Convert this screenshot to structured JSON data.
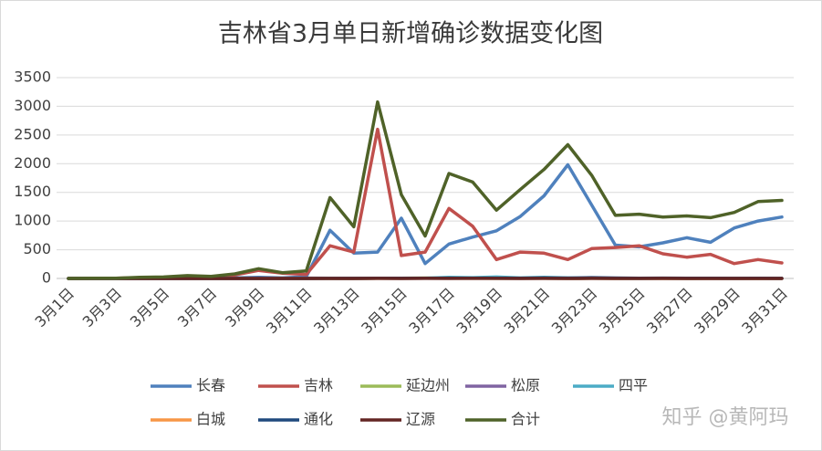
{
  "chart_data": {
    "type": "line",
    "title": "吉林省3月单日新增确诊数据变化图",
    "categories": [
      "3月1日",
      null,
      "3月3日",
      null,
      "3月5日",
      null,
      "3月7日",
      null,
      "3月9日",
      null,
      "3月11日",
      null,
      "3月13日",
      null,
      "3月15日",
      null,
      "3月17日",
      null,
      "3月19日",
      null,
      "3月21日",
      null,
      "3月23日",
      null,
      "3月25日",
      null,
      "3月27日",
      null,
      "3月29日",
      null,
      "3月31日"
    ],
    "series": [
      {
        "name": "长春",
        "color": "#4f81bd",
        "values": [
          0,
          0,
          0,
          2,
          3,
          5,
          4,
          10,
          20,
          10,
          30,
          840,
          440,
          460,
          1050,
          260,
          600,
          720,
          830,
          1080,
          1440,
          1980,
          1280,
          580,
          550,
          620,
          710,
          630,
          880,
          1000,
          1070
        ]
      },
      {
        "name": "吉林",
        "color": "#c0504d",
        "values": [
          0,
          3,
          4,
          15,
          20,
          40,
          30,
          60,
          140,
          90,
          70,
          570,
          460,
          2600,
          400,
          460,
          1220,
          910,
          330,
          460,
          440,
          330,
          520,
          540,
          570,
          430,
          370,
          420,
          260,
          330,
          270
        ]
      },
      {
        "name": "延边州",
        "color": "#9bbb59",
        "values": [
          0,
          0,
          0,
          0,
          0,
          2,
          0,
          3,
          2,
          0,
          5,
          0,
          0,
          5,
          3,
          8,
          4,
          6,
          2,
          3,
          5,
          2,
          3,
          1,
          2,
          1,
          0,
          1,
          2,
          0,
          1
        ]
      },
      {
        "name": "松原",
        "color": "#8064a2",
        "values": [
          0,
          1,
          0,
          2,
          1,
          2,
          1,
          4,
          5,
          2,
          6,
          3,
          2,
          4,
          2,
          3,
          2,
          5,
          3,
          2,
          3,
          2,
          5,
          3,
          2,
          2,
          1,
          2,
          1,
          2,
          1
        ]
      },
      {
        "name": "四平",
        "color": "#4bacc6",
        "values": [
          0,
          0,
          0,
          0,
          0,
          0,
          0,
          0,
          0,
          0,
          0,
          3,
          2,
          4,
          3,
          5,
          20,
          15,
          25,
          10,
          20,
          10,
          5,
          3,
          2,
          3,
          1,
          2,
          1,
          1,
          0
        ]
      },
      {
        "name": "白城",
        "color": "#f79646",
        "values": [
          0,
          0,
          0,
          0,
          0,
          0,
          0,
          0,
          0,
          0,
          0,
          1,
          0,
          2,
          1,
          3,
          2,
          1,
          2,
          1,
          1,
          0,
          1,
          0,
          1,
          0,
          0,
          0,
          0,
          0,
          0
        ]
      },
      {
        "name": "通化",
        "color": "#1f497d",
        "values": [
          0,
          0,
          0,
          0,
          0,
          0,
          0,
          0,
          0,
          0,
          0,
          2,
          2,
          3,
          3,
          5,
          4,
          5,
          3,
          4,
          8,
          6,
          15,
          8,
          5,
          6,
          4,
          3,
          2,
          3,
          2
        ]
      },
      {
        "name": "辽源",
        "color": "#632523",
        "values": [
          0,
          0,
          0,
          0,
          0,
          0,
          0,
          0,
          0,
          0,
          0,
          0,
          0,
          1,
          0,
          2,
          1,
          2,
          1,
          0,
          1,
          0,
          1,
          0,
          0,
          1,
          0,
          0,
          0,
          0,
          0
        ]
      },
      {
        "name": "合计",
        "color": "#4f6228",
        "values": [
          0,
          5,
          5,
          20,
          25,
          50,
          35,
          80,
          170,
          100,
          130,
          1410,
          900,
          3076,
          1460,
          740,
          1830,
          1680,
          1190,
          1550,
          1900,
          2330,
          1800,
          1100,
          1120,
          1070,
          1090,
          1060,
          1150,
          1340,
          1360
        ]
      }
    ],
    "ylim": [
      0,
      3500
    ],
    "yticks": [
      0,
      500,
      1000,
      1500,
      2000,
      2500,
      3000,
      3500
    ],
    "grid": true,
    "watermark": "知乎 @黄阿玛"
  }
}
